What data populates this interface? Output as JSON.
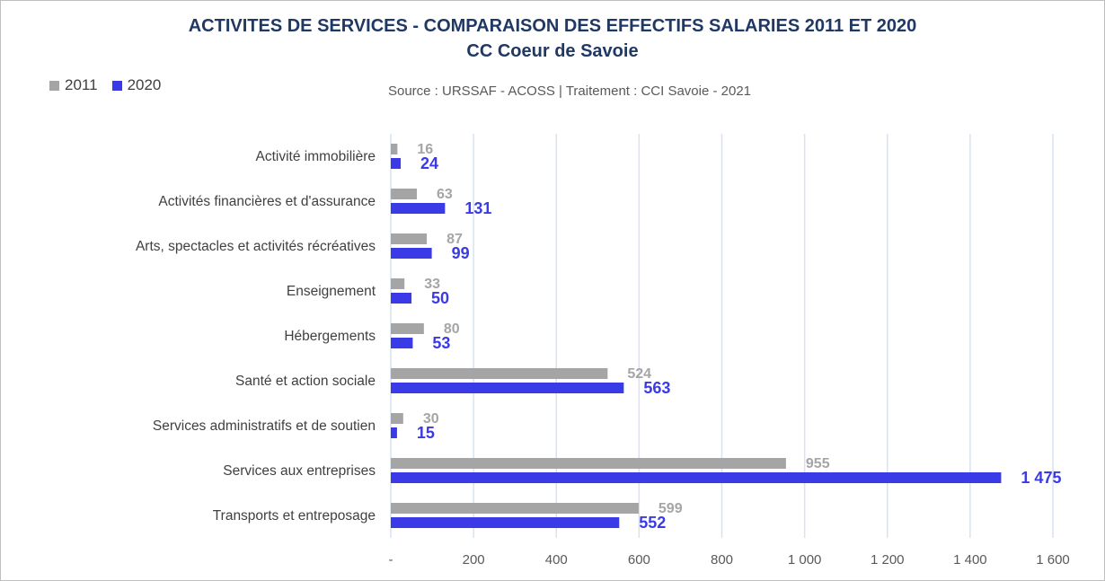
{
  "chart_data": {
    "type": "bar",
    "orientation": "horizontal",
    "title": "ACTIVITES DE SERVICES - COMPARAISON DES EFFECTIFS SALARIES 2011 ET 2020",
    "subtitle": "CC Coeur de Savoie",
    "source": "Source  : URSSAF - ACOSS  |  Traitement : CCI Savoie - 2021",
    "categories": [
      "Activité immobilière",
      "Activités financières et d'assurance",
      "Arts, spectacles et activités récréatives",
      "Enseignement",
      "Hébergements",
      "Santé et action sociale",
      "Services administratifs et de soutien",
      "Services aux entreprises",
      "Transports et entreposage "
    ],
    "series": [
      {
        "name": "2011",
        "color": "#a5a5a5",
        "values": [
          16,
          63,
          87,
          33,
          80,
          524,
          30,
          955,
          599
        ],
        "labels": [
          "16",
          "63",
          "87",
          "33",
          "80",
          "524",
          "30",
          "955",
          "599"
        ]
      },
      {
        "name": "2020",
        "color": "#3a3ae6",
        "values": [
          24,
          131,
          99,
          50,
          53,
          563,
          15,
          1475,
          552
        ],
        "labels": [
          "24",
          "131",
          "99",
          "50",
          "53",
          "563",
          "15",
          "1 475",
          "552"
        ]
      }
    ],
    "xlim": [
      0,
      1600
    ],
    "xticks": [
      0,
      200,
      400,
      600,
      800,
      1000,
      1200,
      1400,
      1600
    ],
    "xtick_labels": [
      "-",
      "200",
      "400",
      "600",
      "800",
      "1 000",
      "1 200",
      "1 400",
      "1 600"
    ],
    "grid": "vertical",
    "legend": "top-left",
    "gridline_color": "#d6e3f3"
  }
}
